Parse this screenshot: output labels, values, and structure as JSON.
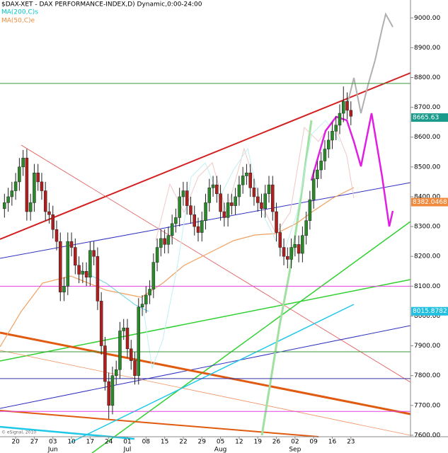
{
  "chart_data": {
    "type": "candlestick",
    "title": "$DAX-XET - DAX PERFORMANCE-INDEX,D) Dynamic,0:00-24:00",
    "legend": [
      {
        "name": "MA(200,C)s",
        "color": "#00c8c8"
      },
      {
        "name": "MA(50,C)e",
        "color": "#f08a3c"
      }
    ],
    "credit": "© eSignal, 2010",
    "x": [
      0,
      1,
      2,
      3,
      4,
      5,
      6,
      7,
      8,
      9,
      10,
      11,
      12,
      13,
      14,
      15,
      16,
      17,
      18,
      19,
      20,
      21,
      22,
      23,
      24,
      25,
      26,
      27,
      28,
      29,
      30,
      31,
      32,
      33,
      34,
      35,
      36,
      37,
      38,
      39,
      40,
      41,
      42,
      43,
      44,
      45,
      46,
      47,
      48,
      49,
      50,
      51,
      52,
      53,
      54,
      55,
      56,
      57,
      58,
      59,
      60,
      61,
      62,
      63,
      64,
      65,
      66,
      67,
      68,
      69,
      70,
      71,
      72,
      73,
      74,
      75,
      76,
      77,
      78,
      79,
      80,
      81,
      82,
      83,
      84,
      85,
      86,
      87,
      88,
      89,
      90,
      91,
      92,
      93
    ],
    "open": [
      8360,
      8380,
      8400,
      8420,
      8450,
      8500,
      8530,
      8350,
      8380,
      8480,
      8450,
      8420,
      8350,
      8340,
      8290,
      8250,
      8080,
      8100,
      8250,
      8230,
      8170,
      8140,
      8150,
      8130,
      8220,
      8200,
      8050,
      7900,
      7780,
      7700,
      7800,
      7820,
      7950,
      7960,
      7890,
      7850,
      7800,
      8030,
      8040,
      8070,
      8090,
      8180,
      8230,
      8260,
      8240,
      8270,
      8310,
      8330,
      8400,
      8420,
      8370,
      8340,
      8300,
      8280,
      8320,
      8380,
      8430,
      8440,
      8410,
      8350,
      8330,
      8380,
      8370,
      8400,
      8440,
      8470,
      8480,
      8430,
      8400,
      8380,
      8360,
      8410,
      8440,
      8350,
      8280,
      8230,
      8200,
      8190,
      8230,
      8240,
      8210,
      8270,
      8320,
      8390,
      8460,
      8490,
      8520,
      8560,
      8590,
      8620,
      8640,
      8680,
      8720,
      8690
    ],
    "high": [
      8410,
      8430,
      8450,
      8480,
      8530,
      8557,
      8560,
      8410,
      8510,
      8510,
      8480,
      8450,
      8380,
      8370,
      8320,
      8280,
      8130,
      8280,
      8280,
      8260,
      8200,
      8180,
      8180,
      8250,
      8250,
      8230,
      8080,
      7930,
      7810,
      7830,
      7850,
      7980,
      7990,
      7990,
      7920,
      7880,
      8060,
      8070,
      8100,
      8120,
      8210,
      8260,
      8290,
      8290,
      8300,
      8340,
      8360,
      8430,
      8450,
      8450,
      8400,
      8370,
      8330,
      8350,
      8410,
      8460,
      8470,
      8470,
      8440,
      8380,
      8410,
      8410,
      8430,
      8470,
      8500,
      8510,
      8510,
      8460,
      8430,
      8410,
      8440,
      8470,
      8470,
      8380,
      8310,
      8260,
      8230,
      8260,
      8270,
      8270,
      8300,
      8350,
      8420,
      8490,
      8520,
      8550,
      8590,
      8620,
      8650,
      8670,
      8710,
      8770,
      8750,
      8720
    ],
    "low": [
      8330,
      8350,
      8370,
      8390,
      8420,
      8470,
      8320,
      8320,
      8350,
      8420,
      8390,
      8320,
      8310,
      8260,
      8220,
      8050,
      8050,
      8070,
      8200,
      8140,
      8110,
      8110,
      8100,
      8100,
      8170,
      8020,
      7870,
      7750,
      7655,
      7670,
      7770,
      7790,
      7920,
      7860,
      7820,
      7770,
      7770,
      8000,
      8010,
      8040,
      8060,
      8150,
      8200,
      8210,
      8210,
      8240,
      8280,
      8300,
      8370,
      8340,
      8310,
      8270,
      8250,
      8250,
      8290,
      8350,
      8400,
      8380,
      8320,
      8300,
      8300,
      8340,
      8340,
      8370,
      8410,
      8440,
      8400,
      8370,
      8350,
      8330,
      8330,
      8380,
      8320,
      8250,
      8200,
      8170,
      8160,
      8160,
      8200,
      8180,
      8180,
      8240,
      8290,
      8360,
      8430,
      8460,
      8490,
      8530,
      8560,
      8590,
      8610,
      8650,
      8660,
      8640
    ],
    "close": [
      8380,
      8400,
      8420,
      8450,
      8500,
      8530,
      8350,
      8380,
      8480,
      8450,
      8420,
      8350,
      8340,
      8290,
      8250,
      8080,
      8100,
      8250,
      8230,
      8170,
      8140,
      8150,
      8130,
      8220,
      8200,
      8050,
      7900,
      7780,
      7700,
      7800,
      7820,
      7950,
      7960,
      7890,
      7850,
      7800,
      8030,
      8040,
      8070,
      8090,
      8180,
      8230,
      8260,
      8240,
      8270,
      8310,
      8330,
      8400,
      8420,
      8370,
      8340,
      8300,
      8280,
      8320,
      8380,
      8430,
      8440,
      8410,
      8350,
      8330,
      8380,
      8370,
      8400,
      8440,
      8470,
      8480,
      8430,
      8400,
      8380,
      8360,
      8410,
      8440,
      8350,
      8280,
      8230,
      8200,
      8190,
      8230,
      8240,
      8210,
      8270,
      8320,
      8390,
      8460,
      8490,
      8520,
      8560,
      8590,
      8620,
      8640,
      8680,
      8720,
      8690,
      8670
    ],
    "up_color": "#2a8a2a",
    "down_color": "#b01e1e",
    "xlim": [
      -1.2,
      109
    ],
    "xticks": [
      {
        "value": 3,
        "label": "20"
      },
      {
        "value": 8,
        "label": "27"
      },
      {
        "value": 13,
        "label": "03"
      },
      {
        "value": 18,
        "label": "10"
      },
      {
        "value": 23,
        "label": "17"
      },
      {
        "value": 28,
        "label": "24"
      },
      {
        "value": 33,
        "label": "01"
      },
      {
        "value": 38,
        "label": "08"
      },
      {
        "value": 43,
        "label": "15"
      },
      {
        "value": 48,
        "label": "22"
      },
      {
        "value": 53,
        "label": "29"
      },
      {
        "value": 58,
        "label": "05"
      },
      {
        "value": 63,
        "label": "12"
      },
      {
        "value": 68,
        "label": "19"
      },
      {
        "value": 73,
        "label": "26"
      },
      {
        "value": 78,
        "label": "02"
      },
      {
        "value": 83,
        "label": "09"
      },
      {
        "value": 88,
        "label": "16"
      },
      {
        "value": 93,
        "label": "23"
      }
    ],
    "months": [
      {
        "value": 13,
        "label": "Jun"
      },
      {
        "value": 33,
        "label": "Jul"
      },
      {
        "value": 58,
        "label": "Aug"
      },
      {
        "value": 78,
        "label": "Sep"
      }
    ],
    "ylim": [
      7595,
      9060
    ],
    "yticks": [
      {
        "value": 7600,
        "label": "7600.00"
      },
      {
        "value": 7700,
        "label": "7700.00"
      },
      {
        "value": 7800,
        "label": "7800.00"
      },
      {
        "value": 7900,
        "label": "7900.00"
      },
      {
        "value": 8000,
        "label": "8000.00"
      },
      {
        "value": 8100,
        "label": "8100.00"
      },
      {
        "value": 8200,
        "label": "8200.00"
      },
      {
        "value": 8300,
        "label": "8300.00"
      },
      {
        "value": 8400,
        "label": "8400.00"
      },
      {
        "value": 8500,
        "label": "8500.00"
      },
      {
        "value": 8600,
        "label": "8600.00"
      },
      {
        "value": 8700,
        "label": "8700.00"
      },
      {
        "value": 8800,
        "label": "8800.00"
      },
      {
        "value": 8900,
        "label": "8900.00"
      },
      {
        "value": 9000,
        "label": "9000.00"
      }
    ],
    "price_labels": [
      {
        "value": 8665.63,
        "label": "8665.63",
        "color": "#1a9a8a"
      },
      {
        "value": 8382.0468,
        "label": "8382.0468",
        "color": "#f08a3c"
      },
      {
        "value": 8015.8782,
        "label": "8015.8782",
        "color": "#22c0e0"
      }
    ],
    "hlines": [
      {
        "value": 8780,
        "color": "#3a9a3a"
      },
      {
        "value": 8100,
        "color": "#e040e0"
      },
      {
        "value": 7880,
        "color": "#3a9a3a"
      },
      {
        "value": 7790,
        "color": "#3030a0"
      },
      {
        "value": 7680,
        "color": "#e040e0"
      }
    ]
  }
}
